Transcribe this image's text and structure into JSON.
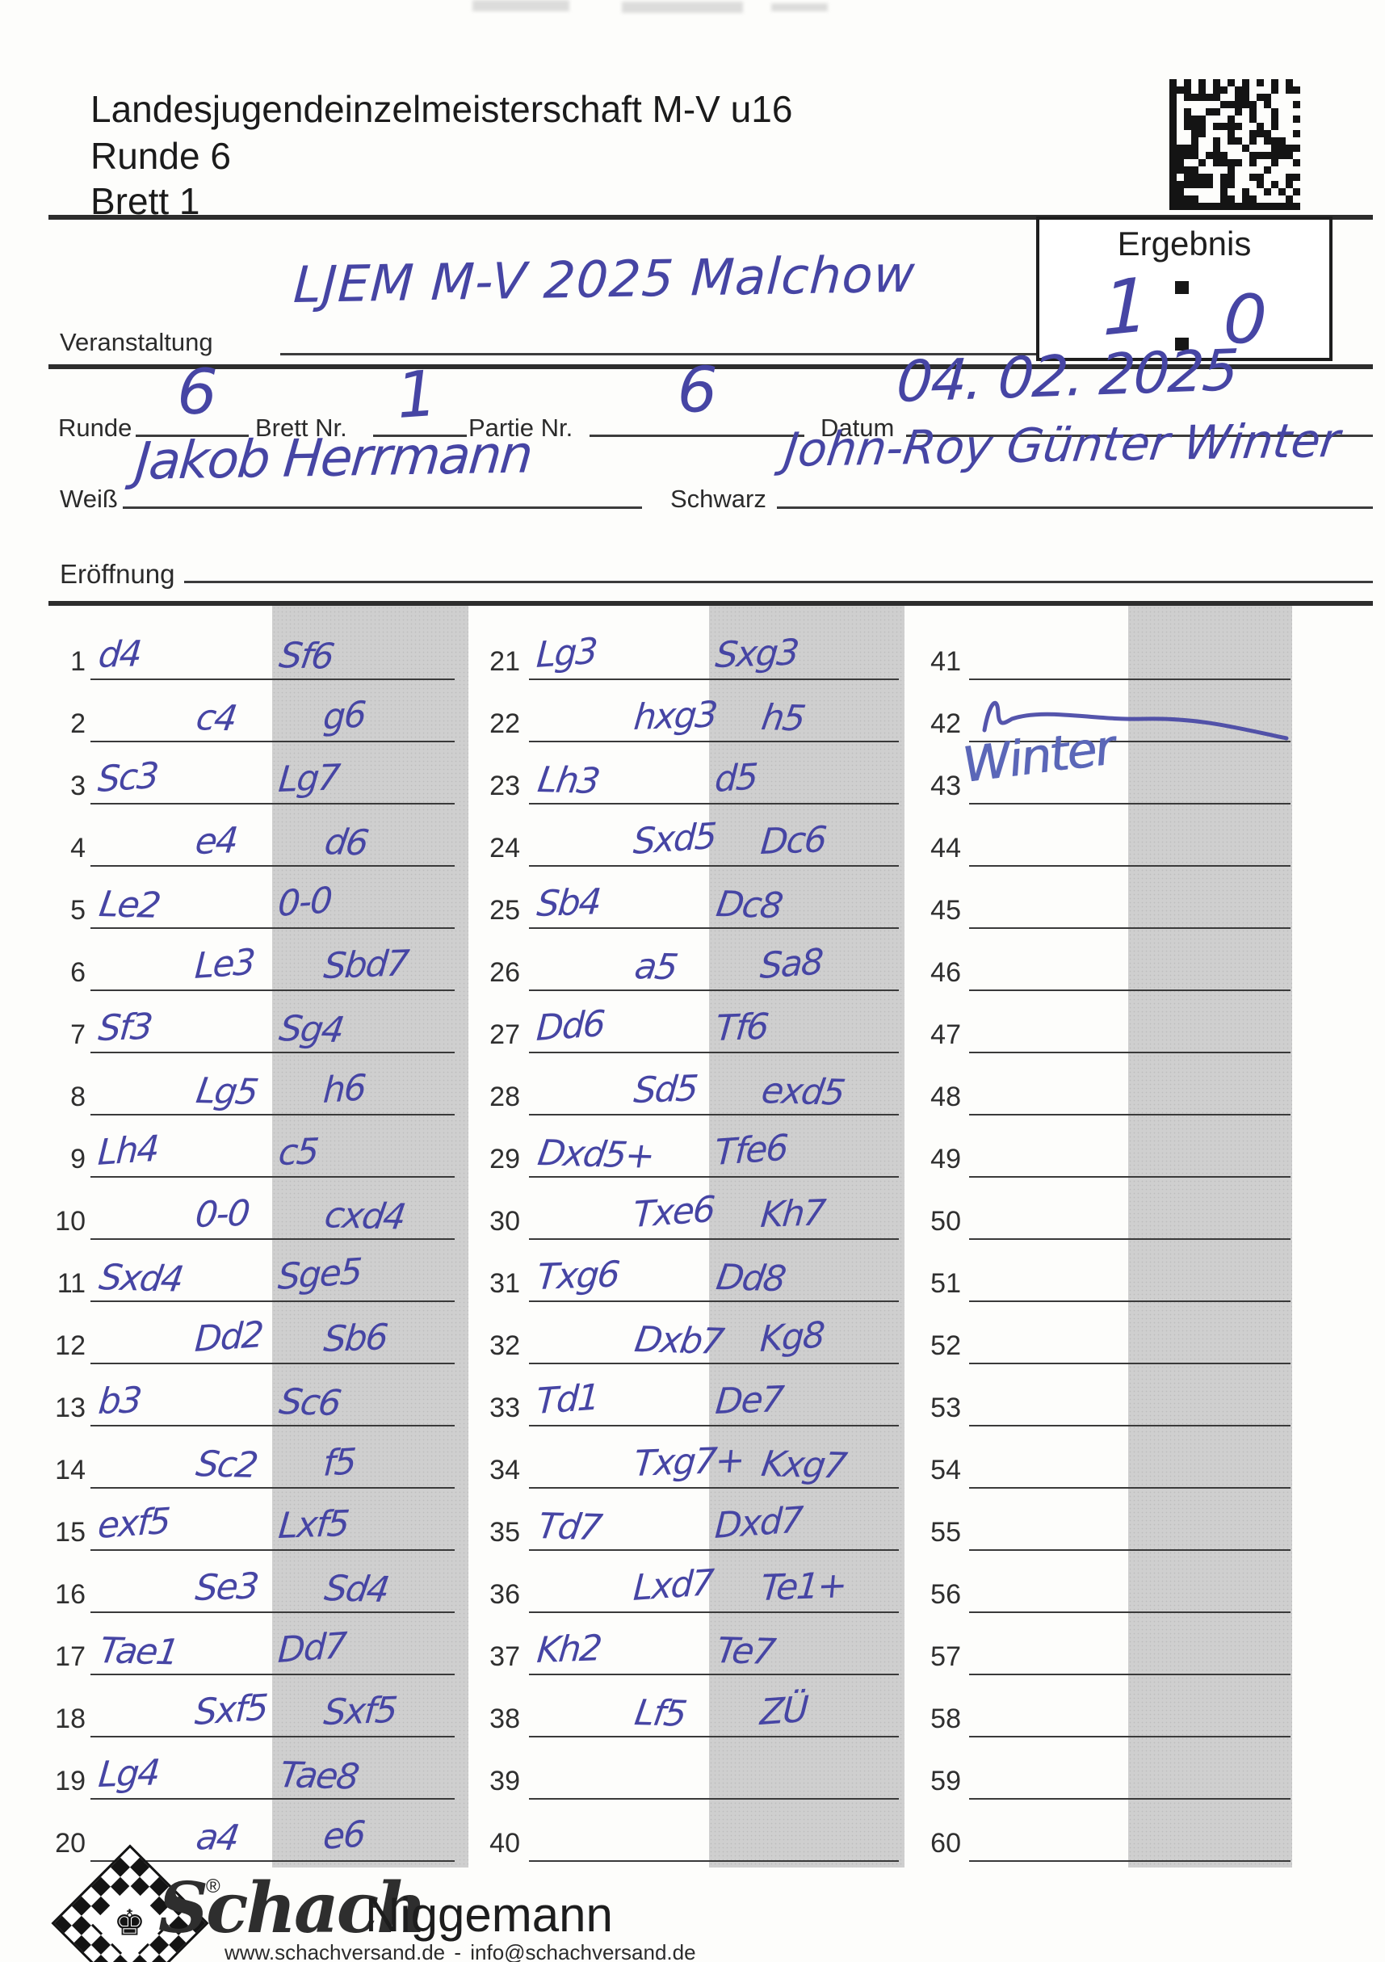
{
  "header": {
    "title": "Landesjugendeinzelmeisterschaft M-V u16",
    "runde": "Runde 6",
    "brett": "Brett 1"
  },
  "ergebnis": {
    "label": "Ergebnis",
    "white_score": "1",
    "black_score": "0"
  },
  "event": {
    "label": "Veranstaltung",
    "value": "LJEM M-V 2025 Malchow"
  },
  "meta": {
    "runde_label": "Runde",
    "runde_value": "6",
    "brett_label": "Brett Nr.",
    "brett_value": "1",
    "partie_label": "Partie Nr.",
    "partie_value": "6",
    "datum_label": "Datum",
    "datum_value": "04. 02. 2025"
  },
  "players": {
    "weiss_label": "Weiß",
    "weiss_value": "Jakob Herrmann",
    "schwarz_label": "Schwarz",
    "schwarz_value": "John-Roy Günter Winter"
  },
  "eroeffnung": {
    "label": "Eröffnung",
    "value": ""
  },
  "moves": [
    {
      "n": "1",
      "w": "d4",
      "b": "Sf6"
    },
    {
      "n": "2",
      "w": "c4",
      "b": "g6"
    },
    {
      "n": "3",
      "w": "Sc3",
      "b": "Lg7"
    },
    {
      "n": "4",
      "w": "e4",
      "b": "d6"
    },
    {
      "n": "5",
      "w": "Le2",
      "b": "0-0"
    },
    {
      "n": "6",
      "w": "Le3",
      "b": "Sbd7"
    },
    {
      "n": "7",
      "w": "Sf3",
      "b": "Sg4"
    },
    {
      "n": "8",
      "w": "Lg5",
      "b": "h6"
    },
    {
      "n": "9",
      "w": "Lh4",
      "b": "c5"
    },
    {
      "n": "10",
      "w": "0-0",
      "b": "cxd4"
    },
    {
      "n": "11",
      "w": "Sxd4",
      "b": "Sge5"
    },
    {
      "n": "12",
      "w": "Dd2",
      "b": "Sb6"
    },
    {
      "n": "13",
      "w": "b3",
      "b": "Sc6"
    },
    {
      "n": "14",
      "w": "Sc2",
      "b": "f5"
    },
    {
      "n": "15",
      "w": "exf5",
      "b": "Lxf5"
    },
    {
      "n": "16",
      "w": "Se3",
      "b": "Sd4"
    },
    {
      "n": "17",
      "w": "Tae1",
      "b": "Dd7"
    },
    {
      "n": "18",
      "w": "Sxf5",
      "b": "Sxf5"
    },
    {
      "n": "19",
      "w": "Lg4",
      "b": "Tae8"
    },
    {
      "n": "20",
      "w": "a4",
      "b": "e6"
    },
    {
      "n": "21",
      "w": "Lg3",
      "b": "Sxg3"
    },
    {
      "n": "22",
      "w": "hxg3",
      "b": "h5"
    },
    {
      "n": "23",
      "w": "Lh3",
      "b": "d5"
    },
    {
      "n": "24",
      "w": "Sxd5",
      "b": "Dc6"
    },
    {
      "n": "25",
      "w": "Sb4",
      "b": "Dc8"
    },
    {
      "n": "26",
      "w": "a5",
      "b": "Sa8"
    },
    {
      "n": "27",
      "w": "Dd6",
      "b": "Tf6"
    },
    {
      "n": "28",
      "w": "Sd5",
      "b": "exd5"
    },
    {
      "n": "29",
      "w": "Dxd5+",
      "b": "Tfe6"
    },
    {
      "n": "30",
      "w": "Txe6",
      "b": "Kh7"
    },
    {
      "n": "31",
      "w": "Txg6",
      "b": "Dd8"
    },
    {
      "n": "32",
      "w": "Dxb7",
      "b": "Kg8"
    },
    {
      "n": "33",
      "w": "Td1",
      "b": "De7"
    },
    {
      "n": "34",
      "w": "Txg7+",
      "b": "Kxg7"
    },
    {
      "n": "35",
      "w": "Td7",
      "b": "Dxd7"
    },
    {
      "n": "36",
      "w": "Lxd7",
      "b": "Te1+"
    },
    {
      "n": "37",
      "w": "Kh2",
      "b": "Te7"
    },
    {
      "n": "38",
      "w": "Lf5",
      "b": "ZÜ"
    },
    {
      "n": "39",
      "w": "",
      "b": ""
    },
    {
      "n": "40",
      "w": "",
      "b": ""
    },
    {
      "n": "41",
      "w": "",
      "b": ""
    },
    {
      "n": "42",
      "w": "",
      "b": ""
    },
    {
      "n": "43",
      "w": "",
      "b": ""
    },
    {
      "n": "44",
      "w": "",
      "b": ""
    },
    {
      "n": "45",
      "w": "",
      "b": ""
    },
    {
      "n": "46",
      "w": "",
      "b": ""
    },
    {
      "n": "47",
      "w": "",
      "b": ""
    },
    {
      "n": "48",
      "w": "",
      "b": ""
    },
    {
      "n": "49",
      "w": "",
      "b": ""
    },
    {
      "n": "50",
      "w": "",
      "b": ""
    },
    {
      "n": "51",
      "w": "",
      "b": ""
    },
    {
      "n": "52",
      "w": "",
      "b": ""
    },
    {
      "n": "53",
      "w": "",
      "b": ""
    },
    {
      "n": "54",
      "w": "",
      "b": ""
    },
    {
      "n": "55",
      "w": "",
      "b": ""
    },
    {
      "n": "56",
      "w": "",
      "b": ""
    },
    {
      "n": "57",
      "w": "",
      "b": ""
    },
    {
      "n": "58",
      "w": "",
      "b": ""
    },
    {
      "n": "59",
      "w": "",
      "b": ""
    },
    {
      "n": "60",
      "w": "",
      "b": ""
    }
  ],
  "signatures": {
    "black": "Winter"
  },
  "footer": {
    "brand_script": "Schach",
    "brand_name": "Niggemann",
    "reg": "®",
    "contact": "www.schachversand.de - info@schachversand.de",
    "king_glyph": "♚"
  },
  "colors": {
    "ink": "#4645a4",
    "band_gray": "#cfcfcf"
  }
}
